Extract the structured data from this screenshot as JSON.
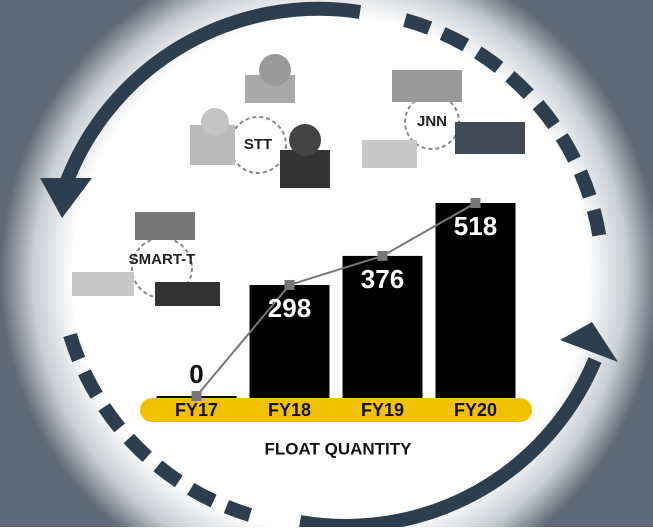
{
  "chart_data": {
    "type": "bar",
    "categories": [
      "FY17",
      "FY18",
      "FY19",
      "FY20"
    ],
    "values": [
      0,
      298,
      376,
      518
    ],
    "x_label": "FLOAT QUANTITY",
    "color": "#000000",
    "line_color": "#777777",
    "band_color": "#f2c200",
    "annotations": [
      "STT",
      "JNN",
      "SMART-T"
    ]
  }
}
